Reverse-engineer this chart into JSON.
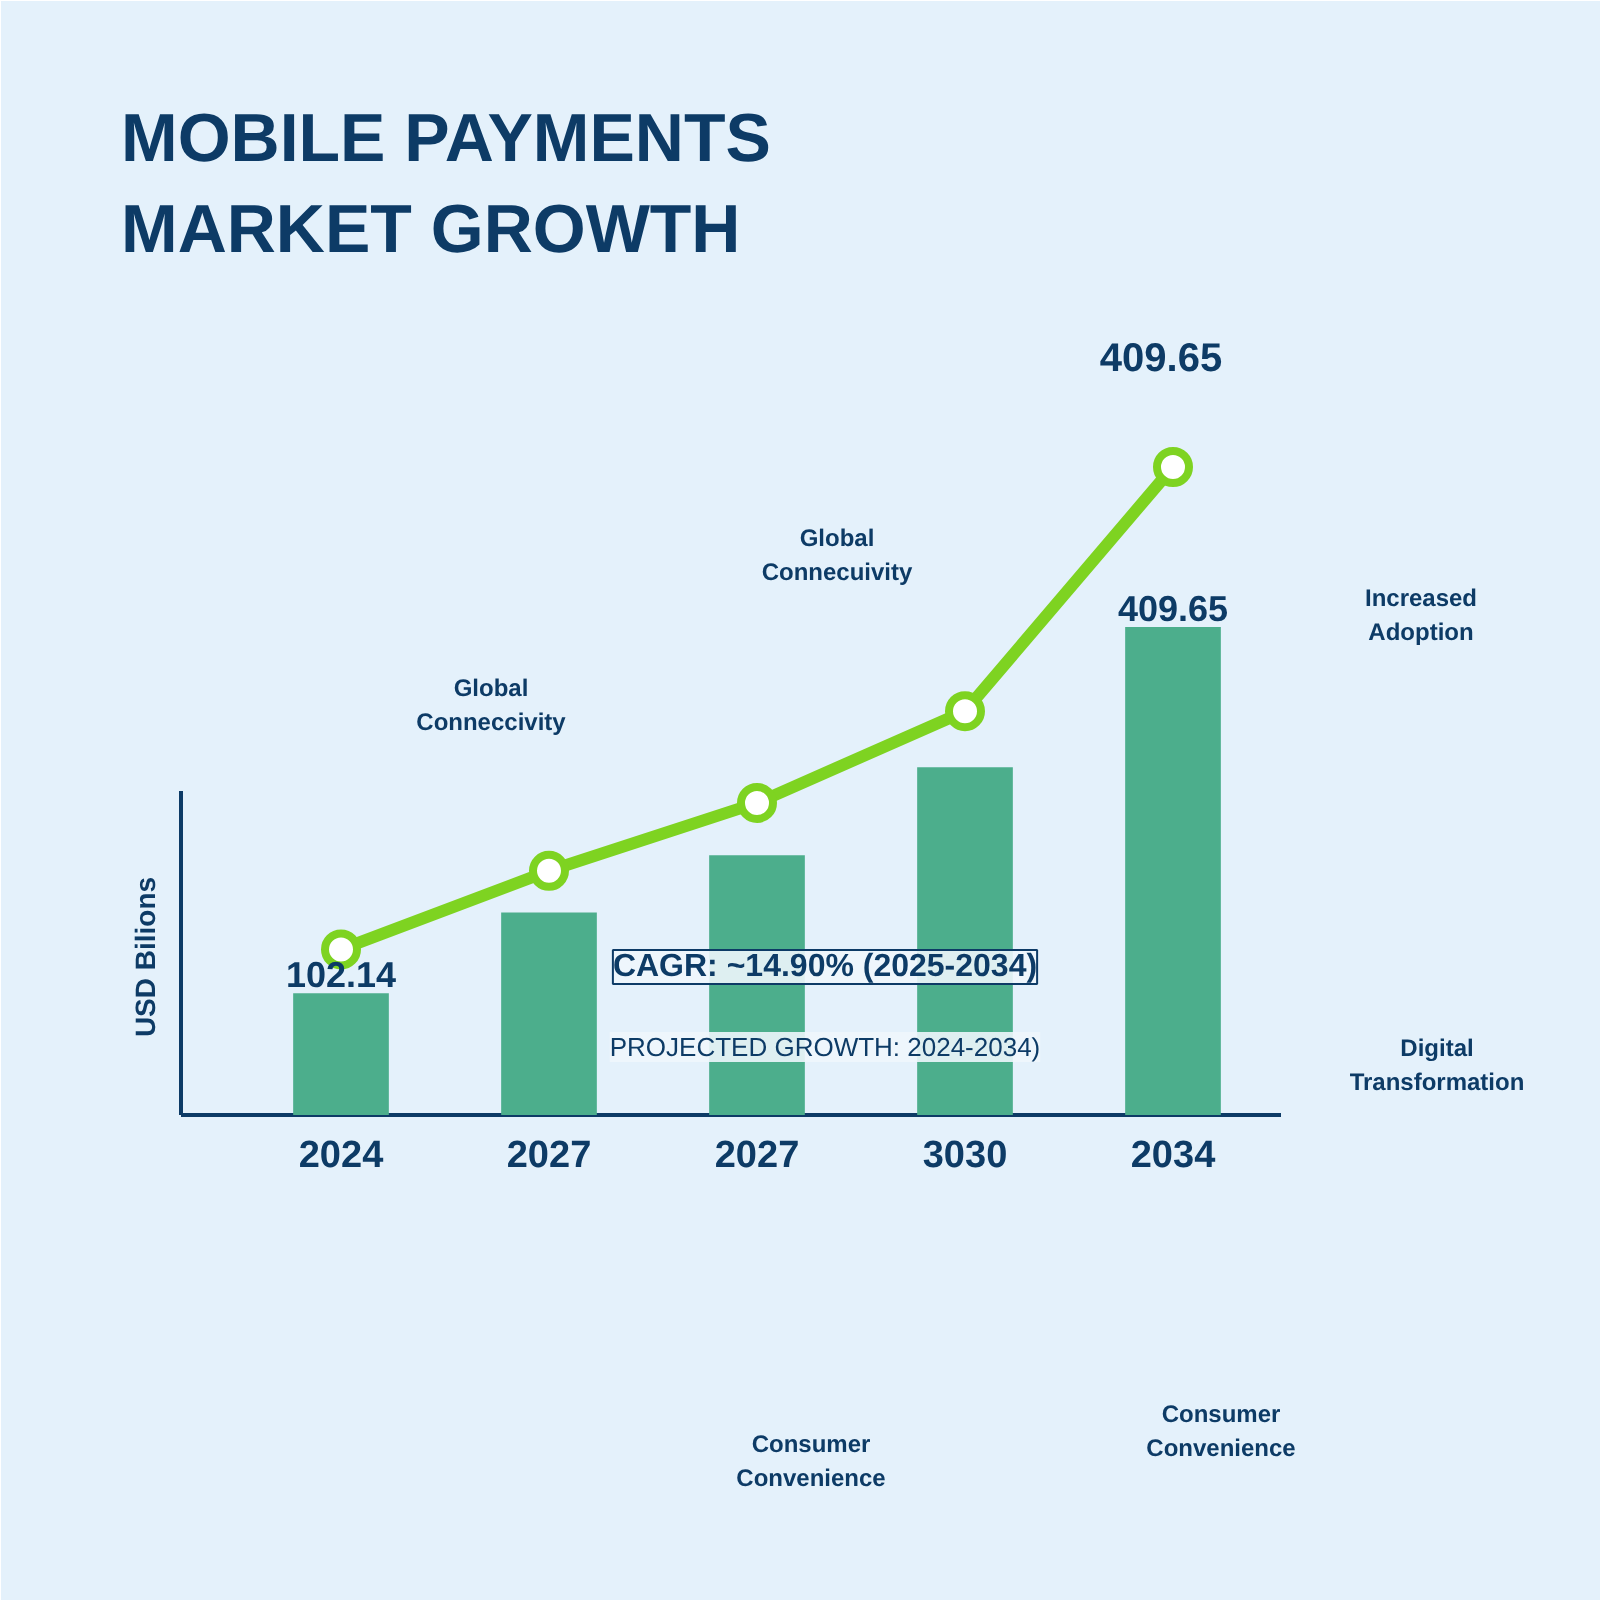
{
  "chart_data": {
    "type": "bar",
    "title": "MOBILE PAYMENTS\nMARKET GROWTH",
    "ylabel": "USD Bilions",
    "categories": [
      "2024",
      "2027",
      "2027",
      "3030",
      "2034"
    ],
    "series": [
      {
        "color": "#4cae8c",
        "values": [
          102.14,
          170,
          218,
          292,
          409.65
        ],
        "value_labels": [
          "102.14",
          null,
          null,
          null,
          "409.65"
        ]
      },
      {
        "type": "line",
        "color": "#7ed321",
        "values": [
          139,
          205,
          262,
          339,
          544
        ]
      }
    ],
    "marker": "circle",
    "line_style": "solid",
    "grid": false,
    "annotations": [
      "409.65",
      "Global\nConneccivity",
      "Global\nConnecuivity",
      "Increased\nAdoption",
      "Digital\nTransformation",
      "Consumer\nConvenience",
      "Consumer\nConvenience",
      "CAGR: ~14.90% (2025-2034)",
      "PROJECTED GROWTH: 2024-2034)"
    ]
  }
}
